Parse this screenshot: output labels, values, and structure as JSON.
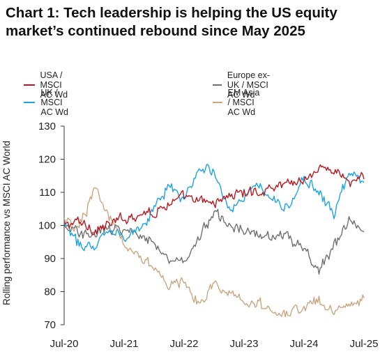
{
  "chart_data": {
    "type": "line",
    "title": "Chart 1: Tech leadership is helping the US equity market’s continued rebound since May 2025",
    "ylabel": "Rolling performance vs MSCI AC World",
    "xlabel": "",
    "ylim": [
      70,
      130
    ],
    "yticks": [
      70,
      80,
      90,
      100,
      110,
      120,
      130
    ],
    "xticks": [
      "Jul-20",
      "Jul-21",
      "Jul-22",
      "Jul-23",
      "Jul-24",
      "Jul-25"
    ],
    "x": [
      "Jul-20",
      "Oct-20",
      "Jan-21",
      "Apr-21",
      "Jul-21",
      "Oct-21",
      "Jan-22",
      "Apr-22",
      "Jul-22",
      "Oct-22",
      "Jan-23",
      "Apr-23",
      "Jul-23",
      "Oct-23",
      "Jan-24",
      "Apr-24",
      "Jul-24",
      "Oct-24",
      "Jan-25",
      "Apr-25",
      "Jul-25"
    ],
    "grid": false,
    "legend_position": "top",
    "series": [
      {
        "name": "USA / MSCI AC Wd",
        "color": "#b5191f",
        "values": [
          100,
          101,
          99,
          100,
          102,
          104,
          104,
          107,
          108,
          107,
          107,
          109,
          110,
          110,
          112,
          113,
          114,
          117,
          117,
          113,
          114
        ]
      },
      {
        "name": "Europe ex-UK / MSCI AC Wd",
        "color": "#707070",
        "values": [
          100,
          97,
          98,
          99,
          99,
          97,
          95,
          90,
          89,
          96,
          104,
          100,
          99,
          98,
          97,
          96,
          93,
          86,
          94,
          101,
          98
        ]
      },
      {
        "name": "UK / MSCI AC Wd",
        "color": "#1fa3e0",
        "values": [
          100,
          94,
          95,
          98,
          97,
          99,
          106,
          112,
          108,
          118,
          117,
          105,
          108,
          113,
          108,
          105,
          114,
          110,
          103,
          116,
          113
        ]
      },
      {
        "name": "EM Asia / MSCI AC Wd",
        "color": "#c8a682",
        "values": [
          101,
          100,
          110,
          103,
          96,
          90,
          87,
          82,
          83,
          76,
          82,
          80,
          77,
          76,
          73,
          74,
          75,
          77,
          74,
          76,
          78
        ]
      }
    ]
  }
}
